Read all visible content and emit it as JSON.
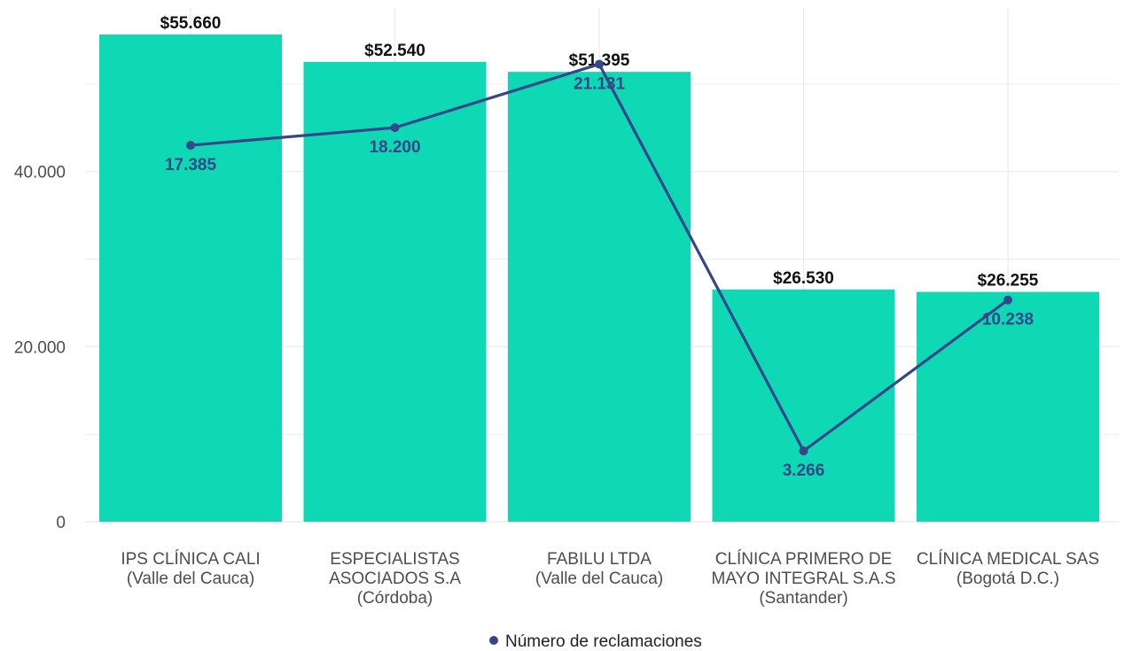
{
  "chart_data": {
    "type": "bar",
    "categories": [
      [
        "IPS CLÍNICA CALI",
        "(Valle del Cauca)"
      ],
      [
        "ESPECIALISTAS",
        "ASOCIADOS S.A",
        "(Córdoba)"
      ],
      [
        "FABILU LTDA",
        "(Valle del Cauca)"
      ],
      [
        "CLÍNICA PRIMERO DE",
        "MAYO INTEGRAL S.A.S",
        "(Santander)"
      ],
      [
        "CLÍNICA MEDICAL SAS",
        "(Bogotá D.C.)"
      ]
    ],
    "series": [
      {
        "values": [
          55660,
          52540,
          51395,
          26530,
          26255
        ],
        "labels": [
          "$55.660",
          "$52.540",
          "$51.395",
          "$26.530",
          "$26.255"
        ],
        "color": "#0fd9b5"
      },
      {
        "type": "line",
        "name": "Número de reclamaciones",
        "values": [
          17385,
          18200,
          21131,
          3266,
          10238
        ],
        "labels": [
          "17.385",
          "18.200",
          "21.131",
          "3.266",
          "10.238"
        ],
        "color": "#33478a"
      }
    ],
    "y_ticks": [
      "0",
      "20.000",
      "40.000"
    ],
    "y_tick_values": [
      0,
      20000,
      40000
    ],
    "ylim": [
      0,
      59000
    ],
    "secondary_ylim": [
      0,
      22500
    ],
    "grid": true,
    "legend": "bottom"
  }
}
